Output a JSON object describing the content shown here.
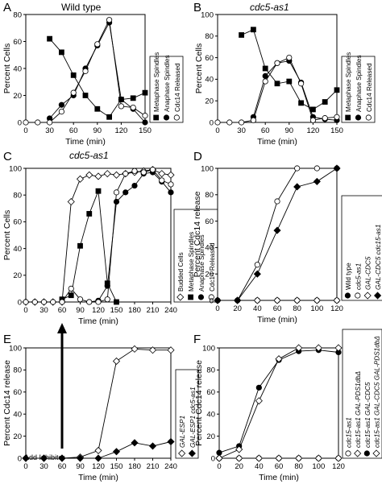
{
  "figure": {
    "inhibitor_label": "Add Inhibitor"
  },
  "chart_data": [
    {
      "panel": "A",
      "title": "Wild type",
      "title_style": "normal",
      "type": "line",
      "xlabel": "Time (min)",
      "ylabel": "Percent Cells",
      "xlim": [
        0,
        150
      ],
      "ylim": [
        0,
        80
      ],
      "xticks": [
        0,
        30,
        60,
        90,
        120,
        150
      ],
      "yticks": [
        0,
        20,
        40,
        60,
        80
      ],
      "legend": "right, rotated",
      "series": [
        {
          "name": "Metaphase Spindles",
          "marker": "square-filled",
          "x": [
            30,
            45,
            60,
            75,
            90,
            105,
            120,
            135,
            150
          ],
          "y": [
            62,
            52,
            35,
            20,
            10,
            4,
            17,
            18,
            22
          ]
        },
        {
          "name": "Anaphase Spindles",
          "marker": "circle-filled",
          "x": [
            30,
            45,
            60,
            75,
            90,
            105,
            120,
            135,
            150
          ],
          "y": [
            3,
            13,
            20,
            40,
            57,
            74,
            17,
            10,
            0
          ]
        },
        {
          "name": "Cdc14 Released",
          "marker": "circle-open",
          "x": [
            0,
            15,
            30,
            45,
            60,
            75,
            90,
            105,
            120,
            135,
            150
          ],
          "y": [
            0,
            0,
            0,
            8,
            22,
            38,
            58,
            76,
            12,
            11,
            5
          ]
        }
      ]
    },
    {
      "panel": "B",
      "title": "cdc5-as1",
      "title_style": "italic",
      "type": "line",
      "xlabel": "Time (min)",
      "ylabel": "Percent Cells",
      "xlim": [
        0,
        150
      ],
      "ylim": [
        0,
        100
      ],
      "xticks": [
        0,
        30,
        60,
        90,
        120,
        150
      ],
      "yticks": [
        0,
        20,
        40,
        60,
        80,
        100
      ],
      "legend": "right, rotated",
      "series": [
        {
          "name": "Metaphase Spindles",
          "marker": "square-filled",
          "x": [
            30,
            45,
            60,
            75,
            90,
            105,
            120,
            135,
            150
          ],
          "y": [
            81,
            86,
            50,
            36,
            38,
            18,
            12,
            19,
            30
          ]
        },
        {
          "name": "Anaphase Spindles",
          "marker": "circle-filled",
          "x": [
            45,
            60,
            75,
            90,
            105,
            120,
            135,
            150
          ],
          "y": [
            5,
            43,
            55,
            57,
            37,
            5,
            3,
            2
          ]
        },
        {
          "name": "Cdc14 Released",
          "marker": "circle-open",
          "x": [
            0,
            15,
            30,
            45,
            60,
            75,
            90,
            105,
            120,
            135,
            150
          ],
          "y": [
            0,
            0,
            0,
            2,
            38,
            55,
            60,
            36,
            2,
            4,
            5
          ]
        }
      ]
    },
    {
      "panel": "C",
      "title": "cdc5-as1",
      "title_style": "italic",
      "type": "line",
      "xlabel": "Time (min)",
      "ylabel": "Percent Cells",
      "xlim": [
        0,
        240
      ],
      "ylim": [
        0,
        100
      ],
      "xticks": [
        0,
        30,
        60,
        90,
        120,
        150,
        180,
        210,
        240
      ],
      "yticks": [
        0,
        20,
        40,
        60,
        80,
        100
      ],
      "legend": "right, rotated",
      "series": [
        {
          "name": "Budded Cells",
          "marker": "diamond-open",
          "x": [
            0,
            15,
            30,
            45,
            60,
            75,
            90,
            105,
            120,
            135,
            150,
            165,
            180,
            195,
            210,
            225,
            240
          ],
          "y": [
            0,
            0,
            0,
            0,
            0,
            75,
            92,
            95,
            94,
            96,
            95,
            96,
            97,
            98,
            99,
            96,
            95
          ]
        },
        {
          "name": "Metaphase Spindles",
          "marker": "square-filled",
          "x": [
            60,
            75,
            90,
            105,
            120,
            135,
            150
          ],
          "y": [
            2,
            5,
            42,
            66,
            83,
            14,
            0
          ]
        },
        {
          "name": "Anaphase Spindles",
          "marker": "circle-filled",
          "x": [
            105,
            120,
            135,
            150,
            165,
            180,
            195,
            210,
            225,
            240
          ],
          "y": [
            0,
            1,
            12,
            75,
            82,
            87,
            96,
            97,
            90,
            82
          ]
        },
        {
          "name": "Cdc14 Released",
          "marker": "circle-open",
          "x": [
            0,
            15,
            30,
            45,
            60,
            75,
            90,
            105,
            120,
            135,
            150,
            165,
            180,
            195,
            210,
            225,
            240
          ],
          "y": [
            0,
            0,
            0,
            0,
            0,
            10,
            2,
            0,
            0,
            2,
            82,
            96,
            98,
            97,
            99,
            91,
            88
          ]
        }
      ]
    },
    {
      "panel": "D",
      "title": "",
      "title_style": "normal",
      "type": "line",
      "xlabel": "Time (min)",
      "ylabel": "Percent Cdc14 release",
      "xlim": [
        0,
        120
      ],
      "ylim": [
        0,
        100
      ],
      "xticks": [
        0,
        20,
        40,
        60,
        80,
        100,
        120
      ],
      "yticks": [
        0,
        20,
        40,
        60,
        80,
        100
      ],
      "legend": "right, rotated",
      "series": [
        {
          "name": "Wild type",
          "marker": "circle-filled",
          "x": [
            0,
            20,
            40,
            60,
            80,
            100,
            120
          ],
          "y": [
            0,
            0,
            0,
            0,
            0,
            0,
            0
          ]
        },
        {
          "name": "cdc5-as1",
          "marker": "circle-open",
          "x": [
            0,
            20,
            40,
            60,
            80,
            100,
            120
          ],
          "y": [
            0,
            0,
            27,
            75,
            100,
            100,
            100
          ]
        },
        {
          "name": "GAL-CDC5",
          "marker": "diamond-open",
          "x": [
            0,
            20,
            40,
            60,
            80,
            100,
            120
          ],
          "y": [
            0,
            0,
            0,
            0,
            0,
            0,
            0
          ]
        },
        {
          "name": "GAL-CDC5 cdc15-as1",
          "marker": "diamond-filled",
          "x": [
            0,
            20,
            40,
            60,
            80,
            100,
            120
          ],
          "y": [
            0,
            0,
            20,
            53,
            86,
            90,
            100
          ]
        }
      ]
    },
    {
      "panel": "E",
      "title": "",
      "title_style": "normal",
      "type": "line",
      "xlabel": "Time (min)",
      "ylabel": "Percent Cdc14 release",
      "xlim": [
        0,
        240
      ],
      "ylim": [
        0,
        100
      ],
      "xticks": [
        0,
        30,
        60,
        90,
        120,
        150,
        180,
        210,
        240
      ],
      "yticks": [
        0,
        20,
        40,
        60,
        80,
        100
      ],
      "legend": "right, rotated",
      "series": [
        {
          "name": "GAL-ESP1",
          "marker": "diamond-open",
          "x": [
            0,
            30,
            60,
            90,
            120,
            150,
            180,
            210,
            240
          ],
          "y": [
            0,
            0,
            0,
            1,
            7,
            88,
            99,
            98,
            98
          ]
        },
        {
          "name": "GAL-ESP1 cdc5-as1",
          "marker": "diamond-filled",
          "x": [
            0,
            30,
            60,
            90,
            120,
            150,
            180,
            210,
            240
          ],
          "y": [
            0,
            0,
            0,
            0,
            0,
            6,
            14,
            11,
            15
          ]
        }
      ]
    },
    {
      "panel": "F",
      "title": "",
      "title_style": "normal",
      "type": "line",
      "xlabel": "Time (min)",
      "ylabel": "Percent Cdc14 release",
      "xlim": [
        0,
        120
      ],
      "ylim": [
        0,
        100
      ],
      "xticks": [
        0,
        20,
        40,
        60,
        80,
        100,
        120
      ],
      "yticks": [
        0,
        20,
        40,
        60,
        80,
        100
      ],
      "legend": "right, rotated",
      "series": [
        {
          "name": "cdc15-as1",
          "marker": "circle-open",
          "x": [
            0,
            20,
            40,
            60,
            80,
            100,
            120
          ],
          "y": [
            0,
            0,
            0,
            0,
            0,
            0,
            0
          ]
        },
        {
          "name": "cdc15-as1 GAL-PDS1dbΔ",
          "marker": "diamond-open",
          "x": [
            0,
            20,
            40,
            60,
            80,
            100,
            120
          ],
          "y": [
            0,
            0,
            0,
            0,
            0,
            0,
            0
          ]
        },
        {
          "name": "cdc15-as1 GAL-CDC5",
          "marker": "circle-filled",
          "x": [
            0,
            20,
            40,
            60,
            80,
            100,
            120
          ],
          "y": [
            5,
            11,
            64,
            89,
            97,
            98,
            96
          ]
        },
        {
          "name": "cdc15-as1 GAL-CDC5 GAL-PDS1dbΔ",
          "marker": "diamond-open",
          "x": [
            0,
            20,
            40,
            60,
            80,
            100,
            120
          ],
          "y": [
            0,
            8,
            52,
            90,
            100,
            100,
            100
          ]
        }
      ]
    }
  ]
}
